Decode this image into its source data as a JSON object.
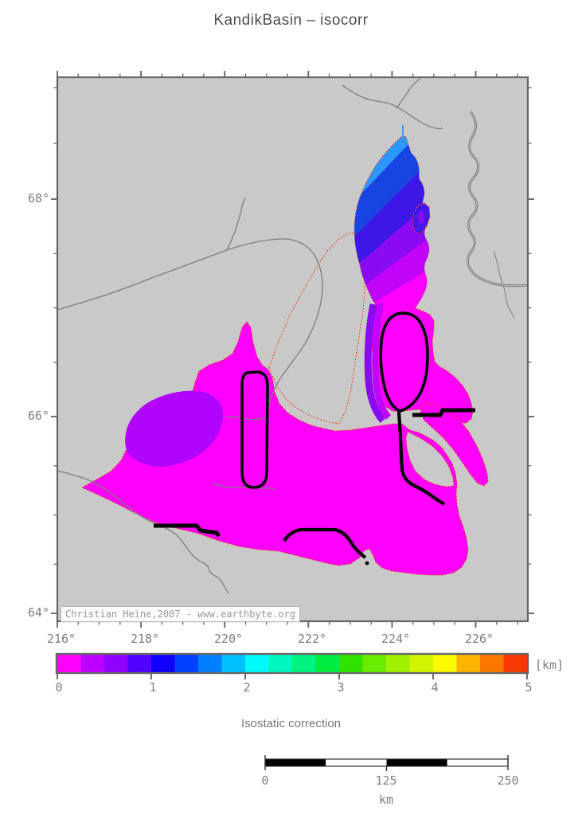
{
  "title": "KandikBasin – isocorr",
  "map": {
    "attribution": "Christian Heine,2007 - www.earthbyte.org",
    "x_axis": {
      "tick_labels": [
        "216°",
        "218°",
        "220°",
        "222°",
        "224°",
        "226°"
      ]
    },
    "y_axis": {
      "tick_labels": [
        "68°",
        "66°",
        "64°"
      ]
    }
  },
  "colorbar": {
    "caption": "Isostatic correction",
    "unit_label": "[km]",
    "tick_labels": [
      "0",
      "1",
      "2",
      "3",
      "4",
      "5"
    ],
    "value_range": [
      0,
      5
    ],
    "colors": [
      "#FF00FF",
      "#C000FF",
      "#9000FF",
      "#5000FF",
      "#1000FA",
      "#0040FF",
      "#0080FF",
      "#00C0FF",
      "#00FAFA",
      "#00F8C0",
      "#00F280",
      "#00EC40",
      "#30E400",
      "#68EC00",
      "#A0F000",
      "#D2F400",
      "#FAFA00",
      "#FCB400",
      "#FC7800",
      "#F83800"
    ]
  },
  "scalebar": {
    "tick_labels": [
      "0",
      "125",
      "250"
    ],
    "unit_label": "km"
  },
  "colors": {
    "land": "#C9C9C9",
    "frame": "#666666",
    "basin_fill": "#FF00FF",
    "basin_outline": "#E8401C",
    "river": "#7E7E7E",
    "contour": "#000000",
    "west_patch": "#B004FC"
  }
}
